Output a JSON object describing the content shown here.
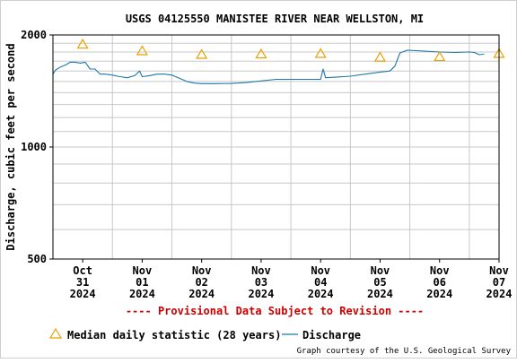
{
  "chart_data": {
    "type": "line",
    "title": "USGS 04125550 MANISTEE RIVER NEAR WELLSTON, MI",
    "ylabel": "Discharge, cubic feet per second",
    "yscale": "log",
    "ylim": [
      500,
      2000
    ],
    "y_ticks": [
      500,
      1000,
      2000
    ],
    "x_range": [
      "2024-10-31T00:00",
      "2024-11-07T12:00"
    ],
    "x_ticks": [
      {
        "date": "2024-10-31T12:00",
        "month": "Oct",
        "day": "31",
        "year": "2024"
      },
      {
        "date": "2024-11-01T12:00",
        "month": "Nov",
        "day": "01",
        "year": "2024"
      },
      {
        "date": "2024-11-02T12:00",
        "month": "Nov",
        "day": "02",
        "year": "2024"
      },
      {
        "date": "2024-11-03T12:00",
        "month": "Nov",
        "day": "03",
        "year": "2024"
      },
      {
        "date": "2024-11-04T12:00",
        "month": "Nov",
        "day": "04",
        "year": "2024"
      },
      {
        "date": "2024-11-05T12:00",
        "month": "Nov",
        "day": "05",
        "year": "2024"
      },
      {
        "date": "2024-11-06T12:00",
        "month": "Nov",
        "day": "06",
        "year": "2024"
      },
      {
        "date": "2024-11-07T12:00",
        "month": "Nov",
        "day": "07",
        "year": "2024"
      }
    ],
    "grid": true,
    "series": [
      {
        "name": "Discharge",
        "color": "#1f77a8",
        "points": [
          [
            "2024-10-31T00:00",
            1570
          ],
          [
            "2024-10-31T01:00",
            1610
          ],
          [
            "2024-10-31T03:00",
            1640
          ],
          [
            "2024-10-31T05:00",
            1660
          ],
          [
            "2024-10-31T07:00",
            1690
          ],
          [
            "2024-10-31T09:00",
            1690
          ],
          [
            "2024-10-31T11:00",
            1680
          ],
          [
            "2024-10-31T13:00",
            1690
          ],
          [
            "2024-10-31T15:00",
            1620
          ],
          [
            "2024-10-31T17:00",
            1620
          ],
          [
            "2024-10-31T19:00",
            1570
          ],
          [
            "2024-10-31T21:00",
            1570
          ],
          [
            "2024-11-01T00:00",
            1560
          ],
          [
            "2024-11-01T03:00",
            1545
          ],
          [
            "2024-11-01T06:00",
            1535
          ],
          [
            "2024-11-01T09:00",
            1555
          ],
          [
            "2024-11-01T11:00",
            1600
          ],
          [
            "2024-11-01T12:00",
            1545
          ],
          [
            "2024-11-01T15:00",
            1555
          ],
          [
            "2024-11-01T18:00",
            1570
          ],
          [
            "2024-11-01T21:00",
            1570
          ],
          [
            "2024-11-02T00:00",
            1560
          ],
          [
            "2024-11-02T03:00",
            1530
          ],
          [
            "2024-11-02T06:00",
            1500
          ],
          [
            "2024-11-02T09:00",
            1485
          ],
          [
            "2024-11-02T12:00",
            1480
          ],
          [
            "2024-11-02T18:00",
            1480
          ],
          [
            "2024-11-03T00:00",
            1482
          ],
          [
            "2024-11-03T06:00",
            1490
          ],
          [
            "2024-11-03T12:00",
            1505
          ],
          [
            "2024-11-03T18:00",
            1520
          ],
          [
            "2024-11-04T00:00",
            1520
          ],
          [
            "2024-11-04T06:00",
            1520
          ],
          [
            "2024-11-04T12:00",
            1520
          ],
          [
            "2024-11-04T13:00",
            1620
          ],
          [
            "2024-11-04T14:00",
            1535
          ],
          [
            "2024-11-04T18:00",
            1540
          ],
          [
            "2024-11-05T00:00",
            1550
          ],
          [
            "2024-11-05T06:00",
            1570
          ],
          [
            "2024-11-05T12:00",
            1590
          ],
          [
            "2024-11-05T16:00",
            1600
          ],
          [
            "2024-11-05T18:00",
            1650
          ],
          [
            "2024-11-05T20:00",
            1790
          ],
          [
            "2024-11-05T23:00",
            1820
          ],
          [
            "2024-11-06T06:00",
            1810
          ],
          [
            "2024-11-06T12:00",
            1800
          ],
          [
            "2024-11-06T18:00",
            1795
          ],
          [
            "2024-11-07T00:00",
            1800
          ],
          [
            "2024-11-07T02:00",
            1795
          ],
          [
            "2024-11-07T04:00",
            1770
          ],
          [
            "2024-11-07T06:00",
            1775
          ]
        ]
      },
      {
        "name": "Median daily statistic (28 years)",
        "color": "#e8a000",
        "marker": "triangle",
        "points": [
          [
            "2024-10-31T12:00",
            1890
          ],
          [
            "2024-11-01T12:00",
            1815
          ],
          [
            "2024-11-02T12:00",
            1775
          ],
          [
            "2024-11-03T12:00",
            1780
          ],
          [
            "2024-11-04T12:00",
            1785
          ],
          [
            "2024-11-05T12:00",
            1745
          ],
          [
            "2024-11-06T12:00",
            1750
          ],
          [
            "2024-11-07T12:00",
            1785
          ]
        ]
      }
    ]
  },
  "labels": {
    "provisional": "---- Provisional Data Subject to Revision ----",
    "credit": "Graph courtesy of the U.S. Geological Survey",
    "legend_median": "Median daily statistic (28 years)",
    "legend_discharge": "Discharge"
  },
  "colors": {
    "discharge": "#1f77a8",
    "median": "#e8a000",
    "provisional": "#cc0000",
    "grid": "#c8c8c8"
  }
}
